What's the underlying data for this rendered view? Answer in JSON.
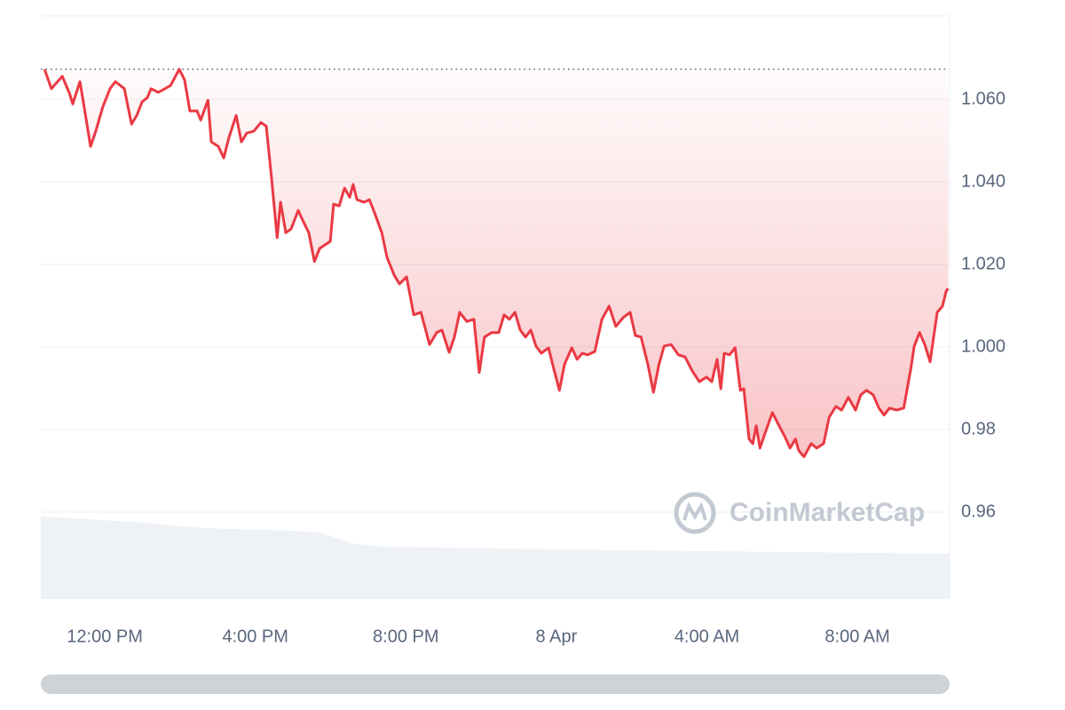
{
  "chart_data": {
    "type": "line",
    "watermark": "CoinMarketCap",
    "x": [
      10.4,
      10.58,
      10.87,
      11.06,
      11.15,
      11.34,
      11.48,
      11.62,
      11.76,
      11.95,
      12.14,
      12.28,
      12.52,
      12.71,
      12.85,
      12.99,
      13.13,
      13.23,
      13.42,
      13.6,
      13.75,
      13.89,
      13.98,
      14.12,
      14.26,
      14.45,
      14.55,
      14.74,
      14.83,
      15.02,
      15.16,
      15.3,
      15.49,
      15.63,
      15.77,
      15.96,
      16.15,
      16.29,
      16.43,
      16.58,
      16.67,
      16.81,
      16.95,
      17.14,
      17.28,
      17.42,
      17.57,
      17.71,
      17.99,
      18.08,
      18.23,
      18.37,
      18.51,
      18.6,
      18.7,
      18.89,
      19.03,
      19.17,
      19.36,
      19.5,
      19.69,
      19.83,
      20.02,
      20.21,
      20.4,
      20.63,
      20.82,
      20.96,
      21.15,
      21.29,
      21.43,
      21.62,
      21.81,
      21.95,
      22.09,
      22.28,
      22.47,
      22.61,
      22.75,
      22.9,
      23.04,
      23.18,
      23.32,
      23.46,
      23.6,
      23.79,
      23.93,
      24.08,
      24.22,
      24.41,
      24.55,
      24.69,
      24.83,
      25.02,
      25.21,
      25.4,
      25.58,
      25.77,
      25.96,
      26.1,
      26.25,
      26.43,
      26.58,
      26.72,
      26.86,
      27.05,
      27.24,
      27.42,
      27.61,
      27.8,
      27.99,
      28.13,
      28.27,
      28.37,
      28.46,
      28.6,
      28.75,
      28.89,
      28.98,
      29.12,
      29.22,
      29.31,
      29.41,
      29.55,
      29.74,
      29.92,
      30.07,
      30.21,
      30.35,
      30.44,
      30.58,
      30.77,
      30.92,
      31.1,
      31.25,
      31.43,
      31.58,
      31.76,
      31.95,
      32.09,
      32.24,
      32.42,
      32.57,
      32.71,
      32.85,
      33.04,
      33.23,
      33.42,
      33.51,
      33.65,
      33.79,
      33.93,
      34.12,
      34.26,
      34.36,
      34.41
    ],
    "values": [
      1.0673,
      1.0626,
      1.0656,
      1.0615,
      1.0589,
      1.0643,
      1.0566,
      1.0486,
      1.0523,
      1.0583,
      1.0626,
      1.0643,
      1.0626,
      1.054,
      1.0561,
      1.0594,
      1.0604,
      1.0626,
      1.0617,
      1.0626,
      1.0634,
      1.0658,
      1.0673,
      1.0647,
      1.0572,
      1.0572,
      1.055,
      1.0598,
      1.0497,
      1.0486,
      1.0458,
      1.0508,
      1.0561,
      1.0497,
      1.0518,
      1.0523,
      1.0544,
      1.0535,
      1.0411,
      1.0265,
      1.0351,
      1.0277,
      1.0286,
      1.0331,
      1.0303,
      1.0277,
      1.0207,
      1.0239,
      1.0256,
      1.0346,
      1.0342,
      1.0385,
      1.0363,
      1.0394,
      1.0357,
      1.0351,
      1.0357,
      1.0325,
      1.0277,
      1.0217,
      1.0174,
      1.0153,
      1.017,
      1.0078,
      1.0084,
      1.0006,
      1.0035,
      1.0041,
      0.9987,
      1.0024,
      1.0084,
      1.0062,
      1.0067,
      0.9938,
      1.0024,
      1.0035,
      1.0035,
      1.0078,
      1.0067,
      1.0084,
      1.0041,
      1.0024,
      1.0041,
      1.0002,
      0.9985,
      0.9998,
      0.9948,
      0.9895,
      0.9959,
      0.9998,
      0.997,
      0.9985,
      0.9981,
      0.9989,
      1.0067,
      1.0099,
      1.005,
      1.0071,
      1.0084,
      1.0028,
      1.0024,
      0.9959,
      0.989,
      0.9955,
      1.0002,
      1.0006,
      0.9981,
      0.9976,
      0.9942,
      0.9916,
      0.9927,
      0.9916,
      0.997,
      0.9899,
      0.9985,
      0.9981,
      0.9998,
      0.9895,
      0.9899,
      0.9777,
      0.9766,
      0.9809,
      0.9755,
      0.9792,
      0.9841,
      0.9809,
      0.9783,
      0.9755,
      0.9777,
      0.9749,
      0.9734,
      0.9766,
      0.9755,
      0.9766,
      0.983,
      0.9856,
      0.9847,
      0.9878,
      0.9847,
      0.9884,
      0.9895,
      0.9884,
      0.9852,
      0.9835,
      0.9852,
      0.9847,
      0.9852,
      0.9948,
      1.0002,
      1.0035,
      1.0006,
      0.9964,
      1.0084,
      1.0099,
      1.0136,
      1.0142
    ],
    "color": "#ea3943",
    "reference_line": 1.0673,
    "xlim": [
      10.3,
      34.45
    ],
    "xticks": [
      {
        "value": 12,
        "label": "12:00 PM"
      },
      {
        "value": 16,
        "label": "4:00 PM"
      },
      {
        "value": 20,
        "label": "8:00 PM"
      },
      {
        "value": 24,
        "label": "8 Apr"
      },
      {
        "value": 28,
        "label": "4:00 AM"
      },
      {
        "value": 32,
        "label": "8:00 AM"
      }
    ],
    "ylim": [
      0.94,
      1.08
    ],
    "yticks": [
      {
        "value": 0.96,
        "label": "0.96"
      },
      {
        "value": 0.98,
        "label": "0.98"
      },
      {
        "value": 1.0,
        "label": "1.000"
      },
      {
        "value": 1.02,
        "label": "1.020"
      },
      {
        "value": 1.04,
        "label": "1.040"
      },
      {
        "value": 1.06,
        "label": "1.060"
      }
    ],
    "grid": true
  }
}
